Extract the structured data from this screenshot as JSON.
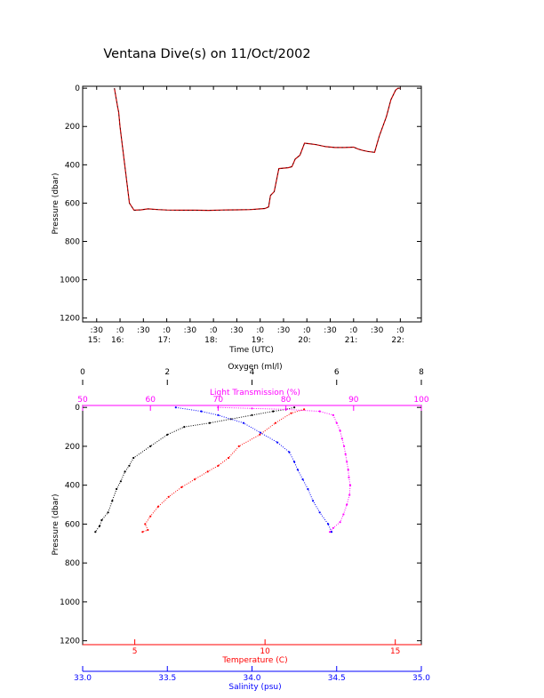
{
  "title": "Ventana Dive(s) on 11/Oct/2002",
  "colors": {
    "axis": "#000000",
    "series_time": "#cc0000",
    "oxygen": "#000000",
    "light_transmission": "#ff00ff",
    "temperature": "#ff0000",
    "salinity": "#0000ff"
  },
  "chart_data": [
    {
      "type": "line",
      "title": "Ventana Dive(s) on 11/Oct/2002",
      "xlabel": "Time (UTC)",
      "ylabel": "Pressure (dbar)",
      "xlim": [
        15.2,
        22.45
      ],
      "ylim": [
        1220,
        -10
      ],
      "y_inverted": true,
      "x_ticks": [
        {
          "value": 15.5,
          "label": ":30",
          "sublabel": "15:"
        },
        {
          "value": 16.0,
          "label": ":0",
          "sublabel": "16:"
        },
        {
          "value": 16.5,
          "label": ":30",
          "sublabel": ""
        },
        {
          "value": 17.0,
          "label": ":0",
          "sublabel": "17:"
        },
        {
          "value": 17.5,
          "label": ":30",
          "sublabel": ""
        },
        {
          "value": 18.0,
          "label": ":0",
          "sublabel": "18:"
        },
        {
          "value": 18.5,
          "label": ":30",
          "sublabel": ""
        },
        {
          "value": 19.0,
          "label": ":0",
          "sublabel": "19:"
        },
        {
          "value": 19.5,
          "label": ":30",
          "sublabel": ""
        },
        {
          "value": 20.0,
          "label": ":0",
          "sublabel": "20:"
        },
        {
          "value": 20.5,
          "label": ":30",
          "sublabel": ""
        },
        {
          "value": 21.0,
          "label": ":0",
          "sublabel": "21:"
        },
        {
          "value": 21.5,
          "label": ":30",
          "sublabel": ""
        },
        {
          "value": 22.0,
          "label": ":0",
          "sublabel": "22:"
        }
      ],
      "y_ticks": [
        0,
        200,
        400,
        600,
        800,
        1000,
        1200
      ],
      "series": [
        {
          "x": [
            15.88,
            15.95,
            15.97,
            16.0,
            16.1,
            16.2,
            16.3,
            16.45,
            16.6,
            16.8,
            17.0,
            17.3,
            17.6,
            17.9,
            18.2,
            18.5,
            18.8,
            19.0,
            19.1,
            19.18,
            19.22,
            19.3,
            19.4,
            19.6,
            19.68,
            19.75,
            19.85,
            19.95,
            20.05,
            20.2,
            20.4,
            20.6,
            20.8,
            21.0,
            21.1,
            21.2,
            21.3,
            21.45,
            21.55,
            21.7,
            21.8,
            21.9,
            21.95,
            22.0
          ],
          "y": [
            0,
            100,
            125,
            200,
            400,
            600,
            637,
            635,
            630,
            634,
            636,
            637,
            637,
            638,
            636,
            635,
            634,
            630,
            628,
            620,
            560,
            540,
            420,
            415,
            410,
            370,
            350,
            287,
            290,
            295,
            305,
            310,
            310,
            308,
            318,
            325,
            330,
            335,
            250,
            150,
            60,
            10,
            0,
            0
          ]
        }
      ]
    },
    {
      "type": "scatter",
      "ylabel": "Pressure (dbar)",
      "ylim": [
        1220,
        -10
      ],
      "y_inverted": true,
      "y_ticks": [
        0,
        200,
        400,
        600,
        800,
        1000,
        1200
      ],
      "axes": {
        "oxygen": {
          "label": "Oxygen (ml/l)",
          "range": [
            0,
            8
          ],
          "ticks": [
            0,
            2,
            4,
            6,
            8
          ],
          "position": "top"
        },
        "light_transmission": {
          "label": "Light Transmission (%)",
          "range": [
            50,
            100
          ],
          "ticks": [
            50,
            60,
            70,
            80,
            90,
            100
          ],
          "position": "top"
        },
        "temperature": {
          "label": "Temperature (C)",
          "range": [
            3,
            16
          ],
          "ticks": [
            5,
            10,
            15
          ],
          "position": "bottom"
        },
        "salinity": {
          "label": "Salinity (psu)",
          "range": [
            33.0,
            35.0
          ],
          "ticks": [
            "33.0",
            "33.5",
            "34.0",
            "34.5",
            "35.0"
          ],
          "position": "bottom"
        }
      },
      "series": [
        {
          "axis": "oxygen",
          "x": [
            5.0,
            4.8,
            4.5,
            4.0,
            3.5,
            3.0,
            2.4,
            2.0,
            1.6,
            1.2,
            1.1,
            1.0,
            0.9,
            0.8,
            0.7,
            0.6,
            0.45,
            0.4,
            0.3
          ],
          "y": [
            0,
            10,
            20,
            40,
            60,
            80,
            100,
            140,
            200,
            260,
            300,
            330,
            380,
            420,
            480,
            540,
            580,
            610,
            640
          ]
        },
        {
          "axis": "light_transmission",
          "x": [
            70,
            75,
            80,
            85,
            87,
            87.5,
            88,
            88.3,
            88.6,
            88.8,
            89,
            89.2,
            89.3,
            89.5,
            89.4,
            89.0,
            88.5,
            88.0,
            87.0,
            86.5
          ],
          "y": [
            0,
            5,
            10,
            20,
            40,
            80,
            120,
            160,
            200,
            240,
            280,
            320,
            360,
            400,
            450,
            500,
            550,
            590,
            620,
            640
          ]
        },
        {
          "axis": "temperature",
          "x": [
            11.5,
            11.0,
            10.4,
            9.8,
            9.0,
            8.6,
            8.2,
            7.8,
            7.3,
            6.8,
            6.3,
            5.9,
            5.6,
            5.4,
            5.5,
            5.3
          ],
          "y": [
            10,
            30,
            80,
            140,
            200,
            260,
            300,
            330,
            370,
            410,
            460,
            510,
            560,
            600,
            630,
            640
          ]
        },
        {
          "axis": "salinity",
          "x": [
            33.55,
            33.7,
            33.8,
            33.95,
            34.05,
            34.15,
            34.22,
            34.25,
            34.27,
            34.3,
            34.33,
            34.36,
            34.4,
            34.45,
            34.47
          ],
          "y": [
            0,
            20,
            40,
            80,
            130,
            180,
            230,
            280,
            320,
            370,
            420,
            480,
            540,
            600,
            640
          ]
        }
      ]
    }
  ]
}
